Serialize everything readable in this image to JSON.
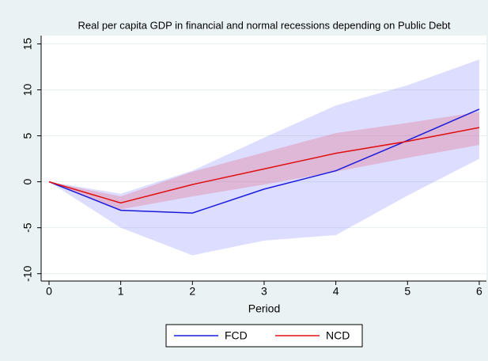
{
  "chart_data": {
    "type": "line",
    "title": "Real per capita GDP in financial and normal recessions depending on Public Debt",
    "x_label": "Period",
    "x": [
      0,
      1,
      2,
      3,
      4,
      5,
      6
    ],
    "xlim": [
      -0.11,
      6.1
    ],
    "xticks": [
      0,
      1,
      2,
      3,
      4,
      5,
      6
    ],
    "ylim": [
      -10.8,
      15.9
    ],
    "yticks": [
      -10,
      -5,
      0,
      5,
      10,
      15
    ],
    "grid": true,
    "legend": "bottom",
    "series": [
      {
        "name": "FCD",
        "color": "#1a1adc",
        "band_color": "rgba(120,120,255,0.25)",
        "values": [
          0,
          -3.1,
          -3.4,
          -0.8,
          1.2,
          4.5,
          7.9
        ],
        "lower": [
          0,
          -5,
          -8,
          -6.4,
          -5.8,
          -1.5,
          2.5
        ],
        "upper": [
          0,
          -1.3,
          1.2,
          4.8,
          8.3,
          10.5,
          13.3
        ]
      },
      {
        "name": "NCD",
        "color": "#e01010",
        "band_color": "rgba(230,90,110,0.28)",
        "values": [
          0,
          -2.3,
          -0.3,
          1.4,
          3.1,
          4.4,
          5.9
        ],
        "lower": [
          0,
          -3,
          -1.6,
          -0.3,
          1.1,
          2.6,
          4.0
        ],
        "upper": [
          0,
          -1.6,
          1.1,
          3.2,
          5.3,
          6.4,
          7.6
        ]
      }
    ]
  }
}
